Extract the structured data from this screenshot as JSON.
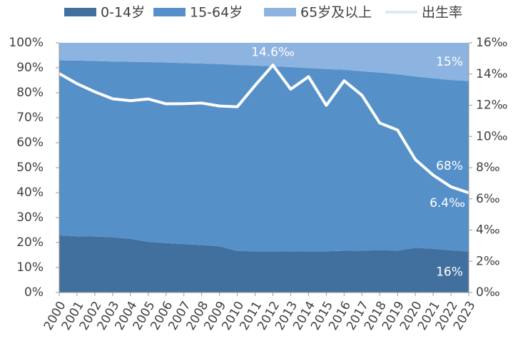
{
  "chart_data": {
    "type": "area",
    "stacked": true,
    "categories": [
      "2000",
      "2001",
      "2002",
      "2003",
      "2004",
      "2005",
      "2006",
      "2007",
      "2008",
      "2009",
      "2010",
      "2011",
      "2012",
      "2013",
      "2014",
      "2015",
      "2016",
      "2017",
      "2018",
      "2019",
      "2020",
      "2021",
      "2022",
      "2023"
    ],
    "series": [
      {
        "name": "0-14岁",
        "color": "#41709e",
        "values": [
          22.9,
          22.5,
          22.4,
          22.1,
          21.5,
          20.3,
          19.8,
          19.4,
          19.0,
          18.5,
          16.6,
          16.5,
          16.5,
          16.4,
          16.5,
          16.5,
          16.7,
          16.8,
          16.9,
          16.8,
          17.9,
          17.5,
          16.9,
          16.4
        ],
        "value_labels": [
          null,
          null,
          null,
          null,
          null,
          null,
          null,
          null,
          null,
          null,
          null,
          null,
          null,
          null,
          null,
          null,
          null,
          null,
          null,
          null,
          null,
          null,
          null,
          "16%"
        ]
      },
      {
        "name": "15-64岁",
        "color": "#5590c8",
        "values": [
          70.1,
          70.4,
          70.3,
          70.4,
          70.9,
          72.0,
          72.3,
          72.5,
          72.7,
          73.0,
          74.5,
          74.4,
          74.1,
          73.9,
          73.4,
          73.0,
          72.5,
          71.8,
          71.2,
          70.6,
          68.6,
          68.3,
          68.2,
          68.3
        ],
        "value_labels": [
          null,
          null,
          null,
          null,
          null,
          null,
          null,
          null,
          null,
          null,
          null,
          null,
          null,
          null,
          null,
          null,
          null,
          null,
          null,
          null,
          null,
          null,
          null,
          "68%"
        ]
      },
      {
        "name": "65岁及以上",
        "color": "#8db3e0",
        "values": [
          7.0,
          7.1,
          7.3,
          7.5,
          7.6,
          7.7,
          7.9,
          8.1,
          8.3,
          8.5,
          8.9,
          9.1,
          9.4,
          9.7,
          10.1,
          10.5,
          10.8,
          11.4,
          11.9,
          12.6,
          13.5,
          14.2,
          14.9,
          15.3
        ],
        "value_labels": [
          null,
          null,
          null,
          null,
          null,
          null,
          null,
          null,
          null,
          null,
          null,
          null,
          null,
          null,
          null,
          null,
          null,
          null,
          null,
          null,
          null,
          null,
          null,
          "15%"
        ]
      },
      {
        "name": "出生率",
        "type": "line",
        "axis": "y2",
        "color": "#ffffff",
        "legend_color": "#dde9f5",
        "values": [
          14.03,
          13.38,
          12.86,
          12.41,
          12.29,
          12.4,
          12.09,
          12.1,
          12.14,
          11.95,
          11.9,
          13.27,
          14.57,
          13.03,
          13.83,
          11.99,
          13.57,
          12.64,
          10.86,
          10.41,
          8.52,
          7.52,
          6.77,
          6.39
        ],
        "value_labels": [
          null,
          null,
          null,
          null,
          null,
          null,
          null,
          null,
          null,
          null,
          null,
          null,
          "14.6‰",
          null,
          null,
          null,
          null,
          null,
          null,
          null,
          null,
          null,
          null,
          "6.4‰"
        ]
      }
    ],
    "ylim": [
      0,
      100
    ],
    "yticks": [
      {
        "value": 0,
        "label": "0%"
      },
      {
        "value": 10,
        "label": "10%"
      },
      {
        "value": 20,
        "label": "20%"
      },
      {
        "value": 30,
        "label": "30%"
      },
      {
        "value": 40,
        "label": "40%"
      },
      {
        "value": 50,
        "label": "50%"
      },
      {
        "value": 60,
        "label": "60%"
      },
      {
        "value": 70,
        "label": "70%"
      },
      {
        "value": 80,
        "label": "80%"
      },
      {
        "value": 90,
        "label": "90%"
      },
      {
        "value": 100,
        "label": "100%"
      }
    ],
    "y2lim": [
      0,
      16
    ],
    "y2ticks": [
      {
        "value": 0,
        "label": "0‰"
      },
      {
        "value": 2,
        "label": "2‰"
      },
      {
        "value": 4,
        "label": "4‰"
      },
      {
        "value": 6,
        "label": "6‰"
      },
      {
        "value": 8,
        "label": "8‰"
      },
      {
        "value": 10,
        "label": "10‰"
      },
      {
        "value": 12,
        "label": "12‰"
      },
      {
        "value": 14,
        "label": "14‰"
      },
      {
        "value": 16,
        "label": "16‰"
      }
    ],
    "legend": "top"
  }
}
